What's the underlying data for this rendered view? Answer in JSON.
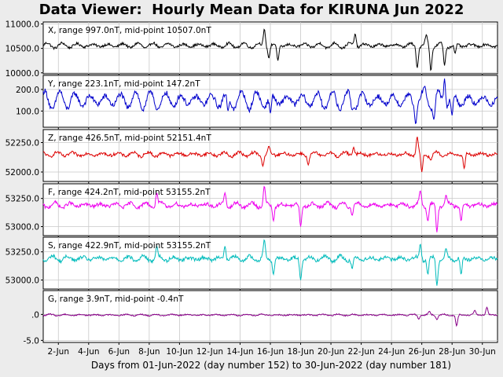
{
  "title": "Data Viewer:  Hourly Mean Data for KIRUNA Jun 2022",
  "xlabel": "Days from 01-Jun-2022 (day number 152) to 30-Jun-2022 (day number 181)",
  "chart_data": {
    "type": "line",
    "x_ticks": [
      "2-Jun",
      "4-Jun",
      "6-Jun",
      "8-Jun",
      "10-Jun",
      "12-Jun",
      "14-Jun",
      "16-Jun",
      "18-Jun",
      "20-Jun",
      "22-Jun",
      "24-Jun",
      "26-Jun",
      "28-Jun",
      "30-Jun"
    ],
    "x_tick_days": [
      2,
      4,
      6,
      8,
      10,
      12,
      14,
      16,
      18,
      20,
      22,
      24,
      26,
      28,
      30
    ],
    "x_range_days": [
      1,
      31
    ],
    "grid": true,
    "panels": [
      {
        "id": "X",
        "label": "X, range 997.0nT, mid-point 10507.0nT",
        "color": "#000000",
        "ylim": [
          9980,
          11040
        ],
        "yticks": [
          10000,
          10500,
          11000
        ],
        "ytick_labels": [
          "10000.0",
          "10500.0",
          "11000.0"
        ],
        "base": 10560,
        "amp": 55,
        "noise": 25,
        "spikes": [
          [
            15.6,
            10900
          ],
          [
            15.9,
            10300
          ],
          [
            16.5,
            10250
          ],
          [
            21.6,
            10800
          ],
          [
            25.7,
            10100
          ],
          [
            26.3,
            10780
          ],
          [
            26.6,
            10040
          ],
          [
            27.5,
            10150
          ],
          [
            28.2,
            10400
          ]
        ]
      },
      {
        "id": "Y",
        "label": "Y, range 223.1nT, mid-point 147.2nT",
        "color": "#0000cc",
        "ylim": [
          25,
          265
        ],
        "yticks": [
          100,
          200
        ],
        "ytick_labels": [
          "100.0",
          "200.0"
        ],
        "base": 150,
        "amp": 45,
        "noise": 12,
        "spikes": [
          [
            8.5,
            105
          ],
          [
            13.2,
            100
          ],
          [
            16.0,
            90
          ],
          [
            21.4,
            105
          ],
          [
            25.6,
            40
          ],
          [
            26.2,
            215
          ],
          [
            26.8,
            60
          ],
          [
            27.5,
            250
          ],
          [
            28.0,
            80
          ]
        ]
      },
      {
        "id": "Z",
        "label": "Z, range 426.5nT, mid-point 52151.4nT",
        "color": "#dd0000",
        "ylim": [
          51920,
          52360
        ],
        "yticks": [
          52000,
          52250
        ],
        "ytick_labels": [
          "52000.0",
          "52250.0"
        ],
        "base": 52150,
        "amp": 20,
        "noise": 12,
        "spikes": [
          [
            15.5,
            52050
          ],
          [
            15.9,
            52220
          ],
          [
            18.5,
            52060
          ],
          [
            21.5,
            52210
          ],
          [
            25.7,
            52300
          ],
          [
            26.0,
            52000
          ],
          [
            26.6,
            52100
          ],
          [
            28.8,
            52030
          ]
        ]
      },
      {
        "id": "F",
        "label": "F, range 424.2nT, mid-point 53155.2nT",
        "color": "#ee00ee",
        "ylim": [
          52920,
          53380
        ],
        "yticks": [
          53000,
          53250
        ],
        "ytick_labels": [
          "53000.0",
          "53250.0"
        ],
        "base": 53190,
        "amp": 25,
        "noise": 15,
        "spikes": [
          [
            8.5,
            53300
          ],
          [
            13.0,
            53300
          ],
          [
            15.6,
            53360
          ],
          [
            16.2,
            53050
          ],
          [
            18.0,
            53000
          ],
          [
            21.4,
            53100
          ],
          [
            25.9,
            53320
          ],
          [
            26.4,
            53050
          ],
          [
            27.0,
            52950
          ],
          [
            27.6,
            53280
          ],
          [
            28.6,
            53050
          ]
        ]
      },
      {
        "id": "S",
        "label": "S, range 422.9nT, mid-point 53155.2nT",
        "color": "#00bbbb",
        "ylim": [
          52920,
          53380
        ],
        "yticks": [
          53000,
          53250
        ],
        "ytick_labels": [
          "53000.0",
          "53250.0"
        ],
        "base": 53190,
        "amp": 25,
        "noise": 15,
        "spikes": [
          [
            8.5,
            53300
          ],
          [
            13.0,
            53300
          ],
          [
            15.6,
            53360
          ],
          [
            16.2,
            53050
          ],
          [
            18.0,
            53000
          ],
          [
            21.4,
            53100
          ],
          [
            25.9,
            53320
          ],
          [
            26.4,
            53050
          ],
          [
            27.0,
            52950
          ],
          [
            27.6,
            53280
          ],
          [
            28.6,
            53050
          ]
        ]
      },
      {
        "id": "G",
        "label": "G, range 3.9nT, mid-point -0.4nT",
        "color": "#880088",
        "ylim": [
          -5.4,
          4.6
        ],
        "yticks": [
          -5,
          0
        ],
        "ytick_labels": [
          "-5.0",
          ".0"
        ],
        "base": -0.1,
        "amp": 0.15,
        "noise": 0.12,
        "spikes": [
          [
            25.8,
            -0.9
          ],
          [
            26.5,
            0.6
          ],
          [
            27.0,
            -1.0
          ],
          [
            28.3,
            -2.2
          ],
          [
            29.5,
            0.8
          ],
          [
            30.3,
            1.4
          ]
        ]
      }
    ]
  }
}
